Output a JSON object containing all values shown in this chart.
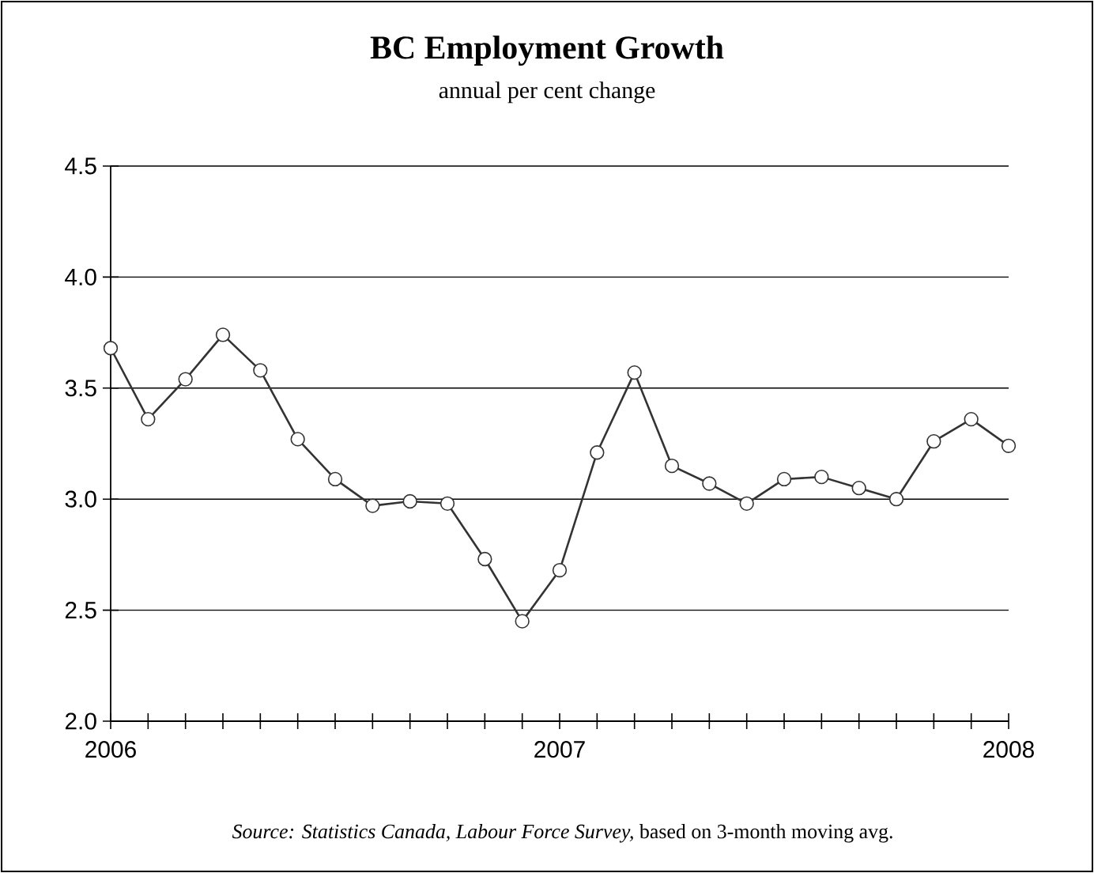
{
  "chart_data": {
    "type": "line",
    "title": "BC Employment Growth",
    "subtitle": "annual per cent change",
    "x": [
      "2006-01",
      "2006-02",
      "2006-03",
      "2006-04",
      "2006-05",
      "2006-06",
      "2006-07",
      "2006-08",
      "2006-09",
      "2006-10",
      "2006-11",
      "2006-12",
      "2007-01",
      "2007-02",
      "2007-03",
      "2007-04",
      "2007-05",
      "2007-06",
      "2007-07",
      "2007-08",
      "2007-09",
      "2007-10",
      "2007-11",
      "2007-12",
      "2008-01"
    ],
    "series": [
      {
        "color": "#333333",
        "values": [
          3.68,
          3.36,
          3.54,
          3.74,
          3.58,
          3.27,
          3.09,
          2.97,
          2.99,
          2.98,
          2.73,
          2.45,
          2.68,
          3.21,
          3.57,
          3.15,
          3.07,
          2.98,
          3.09,
          3.1,
          3.05,
          3.0,
          3.26,
          3.36,
          3.24
        ]
      }
    ],
    "xlim": [
      "2006-01",
      "2008-01"
    ],
    "xticks": [
      {
        "value": "2006-01",
        "label": "2006"
      },
      {
        "value": "2006-02",
        "label": null
      },
      {
        "value": "2006-03",
        "label": null
      },
      {
        "value": "2006-04",
        "label": null
      },
      {
        "value": "2006-05",
        "label": null
      },
      {
        "value": "2006-06",
        "label": null
      },
      {
        "value": "2006-07",
        "label": null
      },
      {
        "value": "2006-08",
        "label": null
      },
      {
        "value": "2006-09",
        "label": null
      },
      {
        "value": "2006-10",
        "label": null
      },
      {
        "value": "2006-11",
        "label": null
      },
      {
        "value": "2006-12",
        "label": null
      },
      {
        "value": "2007-01",
        "label": "2007"
      },
      {
        "value": "2007-02",
        "label": null
      },
      {
        "value": "2007-03",
        "label": null
      },
      {
        "value": "2007-04",
        "label": null
      },
      {
        "value": "2007-05",
        "label": null
      },
      {
        "value": "2007-06",
        "label": null
      },
      {
        "value": "2007-07",
        "label": null
      },
      {
        "value": "2007-08",
        "label": null
      },
      {
        "value": "2007-09",
        "label": null
      },
      {
        "value": "2007-10",
        "label": null
      },
      {
        "value": "2007-11",
        "label": null
      },
      {
        "value": "2007-12",
        "label": null
      },
      {
        "value": "2008-01",
        "label": "2008"
      }
    ],
    "ylim": [
      2.0,
      4.5
    ],
    "yticks": [
      {
        "value": 2.0,
        "label": "2.0"
      },
      {
        "value": 2.5,
        "label": "2.5"
      },
      {
        "value": 3.0,
        "label": "3.0"
      },
      {
        "value": 3.5,
        "label": "3.5"
      },
      {
        "value": 4.0,
        "label": "4.0"
      },
      {
        "value": 4.5,
        "label": "4.5"
      }
    ],
    "grid": "y",
    "marker": "circle",
    "line_style": "solid",
    "annotations": [
      "*Source: Statistics Canada, Labour Force Survey,* based on 3-month moving avg."
    ]
  }
}
